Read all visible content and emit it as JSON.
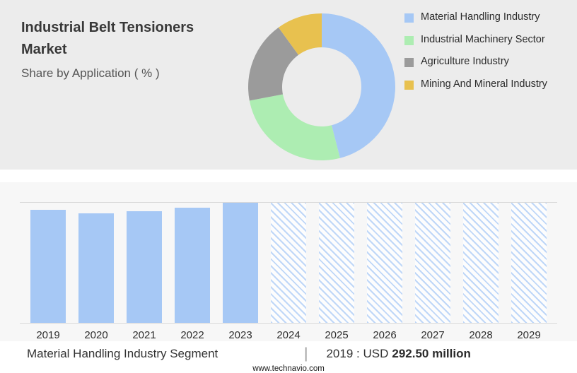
{
  "header": {
    "title": "Industrial Belt Tensioners Market",
    "subtitle": "Share by Application ( % )"
  },
  "chart_data": [
    {
      "type": "pie",
      "subtype": "donut",
      "labels": [
        "Material Handling Industry",
        "Industrial Machinery Sector",
        "Agriculture Industry",
        "Mining And Mineral Industry"
      ],
      "values": [
        46,
        26,
        18,
        10
      ],
      "colors": [
        "#a6c8f5",
        "#adedb2",
        "#9b9b9b",
        "#e8c14f"
      ],
      "legend_position": "right",
      "start_angle_deg": 0,
      "direction": "clockwise"
    },
    {
      "type": "bar",
      "categories": [
        "2019",
        "2020",
        "2021",
        "2022",
        "2023",
        "2024",
        "2025",
        "2026",
        "2027",
        "2028",
        "2029"
      ],
      "values": [
        94,
        91,
        93,
        96,
        100,
        100,
        100,
        100,
        100,
        100,
        100
      ],
      "ylim": [
        0,
        100
      ],
      "bar_color": "#a6c8f5",
      "forecast_start_index": 5,
      "forecast_style": "diagonal-hatch",
      "forecast_hatch_color": "#bfd7f8",
      "gridlines": [
        "top",
        "baseline"
      ],
      "annotation": "2019 : USD 292.50 million"
    }
  ],
  "caption": {
    "segment": "Material Handling Industry Segment",
    "separator": "|",
    "value_prefix": "2019 : USD",
    "value_bold": "292.50 million"
  },
  "footer": {
    "url": "www.technavio.com"
  }
}
